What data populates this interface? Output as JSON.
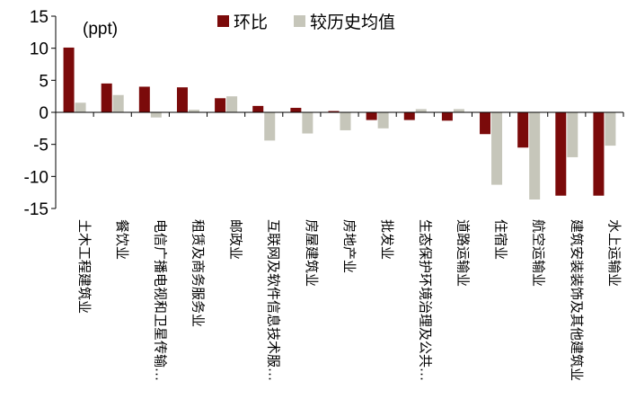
{
  "chart_data": {
    "type": "bar",
    "unit_label": "(ppt)",
    "ylim": [
      -15,
      15
    ],
    "yticks": [
      15,
      10,
      5,
      0,
      -5,
      -10,
      -15
    ],
    "grid": false,
    "legend_position": "top-center",
    "categories": [
      "土木工程建筑业",
      "餐饮业",
      "电信广播电视和卫星传输…",
      "租赁及商务服务业",
      "邮政业",
      "互联网及软件信息技术服…",
      "房屋建筑业",
      "房地产业",
      "批发业",
      "生态保护环境治理及公共…",
      "道路运输业",
      "住宿业",
      "航空运输业",
      "建筑安装装饰及其他建筑业",
      "水上运输业"
    ],
    "series": [
      {
        "name": "环比",
        "color": "#7B0A0A",
        "values": [
          10.1,
          4.5,
          4.0,
          3.9,
          2.2,
          1.0,
          0.7,
          0.2,
          -1.2,
          -1.2,
          -1.3,
          -3.4,
          -5.5,
          -13.0,
          -13.0
        ]
      },
      {
        "name": "较历史均值",
        "color": "#C6C6BA",
        "values": [
          1.5,
          2.7,
          -0.8,
          0.4,
          2.5,
          -4.4,
          -3.3,
          -2.8,
          -2.5,
          0.5,
          0.5,
          -11.3,
          -13.6,
          -7.0,
          -5.2
        ]
      }
    ]
  }
}
